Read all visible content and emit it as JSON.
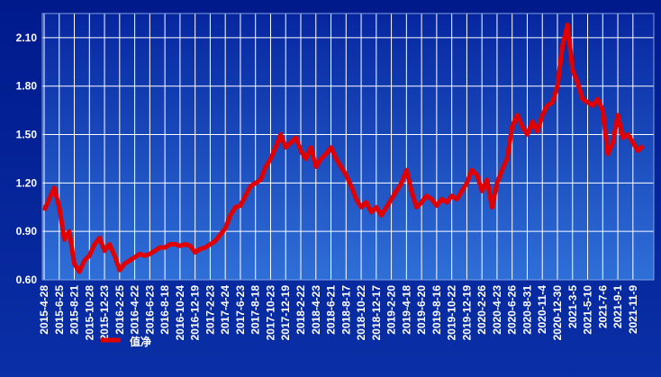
{
  "chart_data": {
    "type": "line",
    "categories": [
      "2015-4-28",
      null,
      null,
      "2015-6-25",
      null,
      null,
      "2015-8-21",
      null,
      null,
      "2015-10-28",
      null,
      null,
      "2015-12-23",
      null,
      null,
      "2016-2-25",
      null,
      null,
      "2016-4-22",
      null,
      null,
      "2016-6-23",
      null,
      null,
      "2016-8-18",
      null,
      null,
      "2016-10-24",
      null,
      null,
      "2016-12-19",
      null,
      null,
      "2017-2-23",
      null,
      null,
      "2017-4-24",
      null,
      null,
      "2017-6-23",
      null,
      null,
      "2017-8-18",
      null,
      null,
      "2017-10-23",
      null,
      null,
      "2017-12-19",
      null,
      null,
      "2018-2-22",
      null,
      null,
      "2018-4-23",
      null,
      null,
      "2018-6-21",
      null,
      null,
      "2018-8-17",
      null,
      null,
      "2018-10-22",
      null,
      null,
      "2018-12-17",
      null,
      null,
      "2019-2-20",
      null,
      null,
      "2019-4-18",
      null,
      null,
      "2019-6-20",
      null,
      null,
      "2019-8-16",
      null,
      null,
      "2019-10-22",
      null,
      null,
      "2019-12-19",
      null,
      null,
      "2020-2-26",
      null,
      null,
      "2020-4-23",
      null,
      null,
      "2020-6-26",
      null,
      null,
      "2020-8-31",
      null,
      null,
      "2020-11-4",
      null,
      null,
      "2020-12-30",
      null,
      null,
      "2021-3-5",
      null,
      null,
      "2021-5-10",
      null,
      null,
      "2021-7-6",
      null,
      null,
      "2021-9-1",
      null,
      null,
      "2021-11-9",
      null,
      null
    ],
    "series": [
      {
        "name": "值净",
        "color": "#e00000",
        "values": [
          1.03,
          1.1,
          1.17,
          1.05,
          0.85,
          0.9,
          0.7,
          0.65,
          0.72,
          0.75,
          0.82,
          0.86,
          0.78,
          0.82,
          0.75,
          0.66,
          0.7,
          0.72,
          0.74,
          0.76,
          0.75,
          0.76,
          0.78,
          0.8,
          0.8,
          0.82,
          0.82,
          0.81,
          0.82,
          0.81,
          0.77,
          0.79,
          0.8,
          0.82,
          0.84,
          0.88,
          0.92,
          1.0,
          1.05,
          1.06,
          1.12,
          1.18,
          1.2,
          1.22,
          1.3,
          1.35,
          1.42,
          1.5,
          1.42,
          1.45,
          1.48,
          1.4,
          1.35,
          1.42,
          1.3,
          1.35,
          1.38,
          1.42,
          1.35,
          1.3,
          1.25,
          1.18,
          1.1,
          1.05,
          1.08,
          1.02,
          1.05,
          1.0,
          1.05,
          1.1,
          1.15,
          1.2,
          1.28,
          1.15,
          1.05,
          1.08,
          1.12,
          1.1,
          1.06,
          1.1,
          1.08,
          1.12,
          1.1,
          1.15,
          1.2,
          1.28,
          1.25,
          1.15,
          1.22,
          1.05,
          1.2,
          1.28,
          1.35,
          1.55,
          1.62,
          1.55,
          1.5,
          1.58,
          1.52,
          1.62,
          1.68,
          1.7,
          1.8,
          2.05,
          2.18,
          1.9,
          1.82,
          1.72,
          1.7,
          1.68,
          1.72,
          1.65,
          1.38,
          1.45,
          1.62,
          1.48,
          1.5,
          1.45,
          1.4,
          1.43
        ]
      }
    ],
    "ylim": [
      0.6,
      2.25
    ],
    "yticks": [
      {
        "value": 0.6,
        "label": "0.60"
      },
      {
        "value": 0.9,
        "label": "0.90"
      },
      {
        "value": 1.2,
        "label": "1.20"
      },
      {
        "value": 1.5,
        "label": "1.50"
      },
      {
        "value": 1.8,
        "label": "1.80"
      },
      {
        "value": 2.1,
        "label": "2.10"
      }
    ],
    "grid": true
  }
}
